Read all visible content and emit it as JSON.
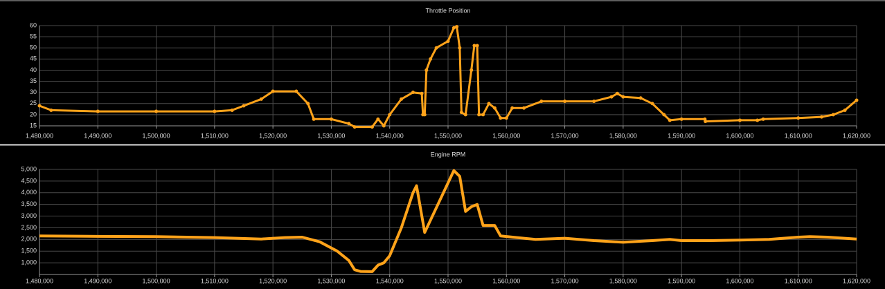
{
  "chart_data": [
    {
      "type": "line",
      "title": "Throttle Position",
      "color": "#ffa31a",
      "markers": true,
      "grid": true,
      "x": [
        1480000,
        1482000,
        1490000,
        1500000,
        1510000,
        1513000,
        1515000,
        1518000,
        1520000,
        1524000,
        1526000,
        1527000,
        1530000,
        1533000,
        1534000,
        1537000,
        1538000,
        1539000,
        1540000,
        1542000,
        1544000,
        1545500,
        1545700,
        1546000,
        1546300,
        1547000,
        1548000,
        1550000,
        1551000,
        1551500,
        1552000,
        1552300,
        1553000,
        1554000,
        1554500,
        1555000,
        1555300,
        1556000,
        1557000,
        1558000,
        1559000,
        1560000,
        1561000,
        1563000,
        1566000,
        1570000,
        1575000,
        1578000,
        1579000,
        1580000,
        1583000,
        1585000,
        1587000,
        1588000,
        1590000,
        1594000,
        1594100,
        1600000,
        1603000,
        1604000,
        1610000,
        1614000,
        1616000,
        1618000,
        1620000
      ],
      "values": [
        24,
        22,
        21.5,
        21.5,
        21.5,
        22,
        24,
        27,
        30.5,
        30.5,
        25,
        18,
        18,
        16,
        14.5,
        14.5,
        18,
        15,
        20,
        27,
        30,
        29.5,
        20,
        20,
        40,
        45,
        50,
        53,
        59,
        59.5,
        50,
        21,
        20,
        40,
        51,
        51,
        20,
        20,
        25,
        23,
        18.5,
        18.5,
        23,
        23,
        26,
        26,
        26,
        28,
        29.5,
        28,
        27.5,
        25,
        20,
        17.5,
        18,
        18,
        17,
        17.5,
        17.5,
        18,
        18.5,
        19,
        20,
        22,
        26.5
      ],
      "xlim": [
        1480000,
        1620000
      ],
      "xticks": [
        {
          "value": 1480000,
          "label": "1,480,000"
        },
        {
          "value": 1490000,
          "label": "1,490,000"
        },
        {
          "value": 1500000,
          "label": "1,500,000"
        },
        {
          "value": 1510000,
          "label": "1,510,000"
        },
        {
          "value": 1520000,
          "label": "1,520,000"
        },
        {
          "value": 1530000,
          "label": "1,530,000"
        },
        {
          "value": 1540000,
          "label": "1,540,000"
        },
        {
          "value": 1550000,
          "label": "1,550,000"
        },
        {
          "value": 1560000,
          "label": "1,560,000"
        },
        {
          "value": 1570000,
          "label": "1,570,000"
        },
        {
          "value": 1580000,
          "label": "1,580,000"
        },
        {
          "value": 1590000,
          "label": "1,590,000"
        },
        {
          "value": 1600000,
          "label": "1,600,000"
        },
        {
          "value": 1610000,
          "label": "1,610,000"
        },
        {
          "value": 1620000,
          "label": "1,620,000"
        }
      ],
      "ylim": [
        15,
        60
      ],
      "yticks": [
        15,
        20,
        25,
        30,
        35,
        40,
        45,
        50,
        55,
        60
      ]
    },
    {
      "type": "line",
      "title": "Engine RPM",
      "color": "#ffa31a",
      "markers": false,
      "grid": true,
      "x": [
        1480000,
        1490000,
        1500000,
        1510000,
        1518000,
        1522000,
        1525000,
        1528000,
        1531000,
        1533000,
        1534000,
        1535000,
        1537000,
        1538000,
        1539000,
        1540000,
        1542000,
        1544000,
        1544600,
        1546000,
        1551000,
        1552000,
        1553000,
        1554000,
        1555000,
        1556000,
        1558000,
        1559000,
        1565000,
        1570000,
        1575000,
        1580000,
        1585000,
        1588000,
        1590000,
        1595000,
        1600000,
        1605000,
        1610000,
        1612000,
        1615000,
        1620000
      ],
      "values": [
        2150,
        2130,
        2120,
        2080,
        2020,
        2080,
        2100,
        1900,
        1500,
        1100,
        700,
        630,
        620,
        900,
        1000,
        1300,
        2500,
        4000,
        4300,
        2300,
        4950,
        4700,
        3200,
        3400,
        3500,
        2600,
        2600,
        2150,
        2000,
        2050,
        1950,
        1880,
        1950,
        2000,
        1950,
        1950,
        1970,
        2000,
        2100,
        2120,
        2100,
        2020
      ],
      "xlim": [
        1480000,
        1620000
      ],
      "xticks": [
        {
          "value": 1480000,
          "label": "1,480,000"
        },
        {
          "value": 1490000,
          "label": "1,490,000"
        },
        {
          "value": 1500000,
          "label": "1,500,000"
        },
        {
          "value": 1510000,
          "label": "1,510,000"
        },
        {
          "value": 1520000,
          "label": "1,520,000"
        },
        {
          "value": 1530000,
          "label": "1,530,000"
        },
        {
          "value": 1540000,
          "label": "1,540,000"
        },
        {
          "value": 1550000,
          "label": "1,550,000"
        },
        {
          "value": 1560000,
          "label": "1,560,000"
        },
        {
          "value": 1570000,
          "label": "1,570,000"
        },
        {
          "value": 1580000,
          "label": "1,580,000"
        },
        {
          "value": 1590000,
          "label": "1,590,000"
        },
        {
          "value": 1600000,
          "label": "1,600,000"
        },
        {
          "value": 1610000,
          "label": "1,610,000"
        },
        {
          "value": 1620000,
          "label": "1,620,000"
        }
      ],
      "ylim": [
        500,
        5000
      ],
      "yticks": [
        {
          "value": 1000,
          "label": "1,000"
        },
        {
          "value": 1500,
          "label": "1,500"
        },
        {
          "value": 2000,
          "label": "2,000"
        },
        {
          "value": 2500,
          "label": "2,500"
        },
        {
          "value": 3000,
          "label": "3,000"
        },
        {
          "value": 3500,
          "label": "3,500"
        },
        {
          "value": 4000,
          "label": "4,000"
        },
        {
          "value": 4500,
          "label": "4,500"
        },
        {
          "value": 5000,
          "label": "5,000"
        }
      ]
    }
  ]
}
